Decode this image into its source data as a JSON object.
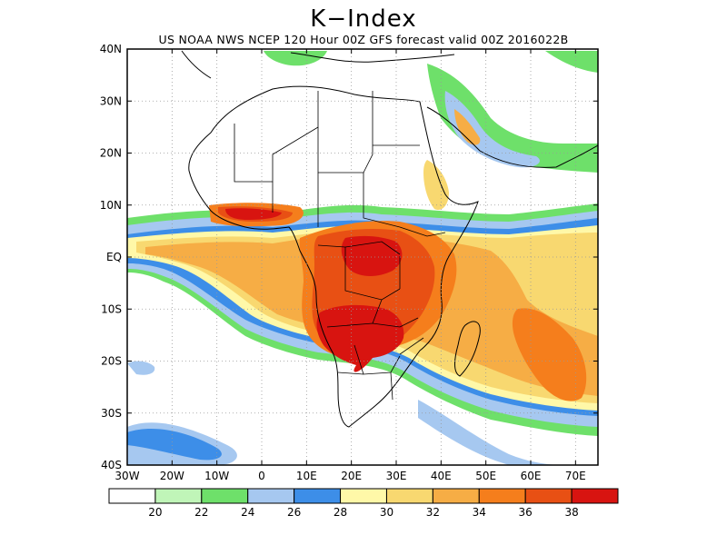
{
  "title": "K−Index",
  "subtitle": "US NOAA NWS NCEP 120 Hour 00Z GFS forecast valid 00Z 2016022B",
  "map": {
    "lat_labels": [
      "40N",
      "30N",
      "20N",
      "10N",
      "EQ",
      "10S",
      "20S",
      "30S",
      "40S"
    ],
    "lon_labels": [
      "30W",
      "20W",
      "10W",
      "0",
      "10E",
      "20E",
      "30E",
      "40E",
      "50E",
      "60E",
      "70E"
    ],
    "lat_range": [
      -40,
      40
    ],
    "lon_range": [
      -30,
      75
    ],
    "gridlines": "dotted"
  },
  "colorbar": {
    "levels": [
      "20",
      "22",
      "24",
      "26",
      "28",
      "30",
      "32",
      "34",
      "36",
      "38"
    ],
    "colors": [
      "#ffffff",
      "#c0f5b8",
      "#6ee06a",
      "#a6c8f0",
      "#3d8ee8",
      "#fff8a8",
      "#f8d870",
      "#f6ad45",
      "#f57e1c",
      "#e85014",
      "#d81410"
    ]
  },
  "colors": {
    "c22": "#c0f5b8",
    "c24": "#6ee06a",
    "c26": "#a6c8f0",
    "c28": "#3d8ee8",
    "c30": "#fff8a8",
    "c32": "#f8d870",
    "c34": "#f6ad45",
    "c36": "#f57e1c",
    "c38": "#e85014",
    "c40": "#d81410"
  }
}
